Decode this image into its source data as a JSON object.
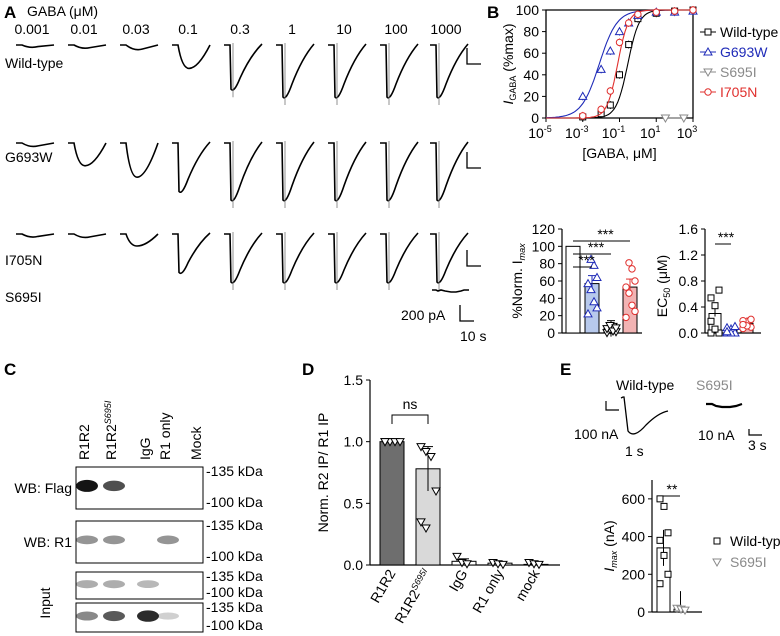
{
  "panel_labels": {
    "a": "A",
    "b": "B",
    "c": "C",
    "d": "D",
    "e": "E"
  },
  "colors": {
    "wt": "#000000",
    "g693w": "#1f2bb8",
    "s695i": "#8a8a8a",
    "i705n": "#e0302e",
    "bar_wt_fill": "#ffffff",
    "bar_g_fill": "#b7c9ec",
    "bar_s_fill": "#d6d6d6",
    "bar_i_fill": "#f2b3b3"
  },
  "panel_a": {
    "gaba_label": "GABA (μM)",
    "concentrations": [
      "0.001",
      "0.01",
      "0.03",
      "0.1",
      "0.3",
      "1",
      "10",
      "100",
      "1000"
    ],
    "rows": [
      {
        "name": "Wild-type",
        "amps": [
          0.03,
          0.05,
          0.08,
          0.45,
          0.85,
          1.0,
          1.0,
          1.0,
          1.0
        ]
      },
      {
        "name": "G693W",
        "amps": [
          0.05,
          0.4,
          0.6,
          0.85,
          1.0,
          1.0,
          1.0,
          1.0,
          1.0
        ]
      },
      {
        "name": "I705N",
        "amps": [
          0.05,
          0.06,
          0.25,
          0.8,
          1.0,
          1.0,
          1.0,
          1.0,
          1.0
        ]
      },
      {
        "name": "S695I"
      }
    ],
    "scale_current": "200 pA",
    "scale_time": "10 s"
  },
  "panel_b_curve": {
    "ylabel_main": "I",
    "ylabel_sub": "GABA",
    "ylabel_rest": " (%max)",
    "xlabel": "[GABA, μM]",
    "yticks": [
      "0",
      "20",
      "40",
      "60",
      "80",
      "100"
    ],
    "xticks": [
      {
        "base": "10",
        "exp": "-5"
      },
      {
        "base": "10",
        "exp": "-3"
      },
      {
        "base": "10",
        "exp": "-1"
      },
      {
        "base": "10",
        "exp": "1"
      },
      {
        "base": "10",
        "exp": "3"
      }
    ],
    "legend": [
      "Wild-type",
      "G693W",
      "S695I",
      "I705N"
    ],
    "chart_data": {
      "type": "line",
      "x_log10": [
        -3,
        -2,
        -1.5,
        -1,
        -0.5,
        0,
        1,
        2,
        3
      ],
      "series": [
        {
          "name": "Wild-type",
          "ec50_log": -0.55,
          "hill": 1.4,
          "y": [
            1,
            4,
            12,
            40,
            68,
            92,
            97,
            99,
            100
          ]
        },
        {
          "name": "G693W",
          "ec50_log": -2.1,
          "hill": 0.9,
          "y": [
            20,
            45,
            62,
            80,
            88,
            95,
            98,
            98,
            99
          ]
        },
        {
          "name": "I705N",
          "ec50_log": -1.1,
          "hill": 1.5,
          "y": [
            2,
            8,
            25,
            70,
            88,
            96,
            98,
            99,
            100
          ]
        },
        {
          "name": "S695I",
          "y_flat": [
            [
              1.5,
              0
            ],
            [
              2.5,
              0
            ]
          ]
        }
      ],
      "xlim_log": [
        -5,
        3
      ],
      "ylim": [
        0,
        100
      ]
    }
  },
  "panel_b_norm": {
    "ylabel_main": "%Norm. I",
    "ylabel_sub": "max",
    "yticks": [
      "0",
      "20",
      "40",
      "60",
      "80",
      "100",
      "120"
    ],
    "sig": [
      "***",
      "***",
      "***"
    ],
    "chart_data": {
      "type": "bar",
      "categories": [
        "Wild-type",
        "G693W",
        "S695I",
        "I705N"
      ],
      "values": [
        100,
        57,
        5,
        53
      ],
      "ylim": [
        0,
        120
      ]
    }
  },
  "panel_b_ec50": {
    "ylabel": "EC",
    "ylabel_sub": "50",
    "ylabel_rest": " (μM)",
    "yticks": [
      "0.0",
      "0.4",
      "0.8",
      "1.2",
      "1.6"
    ],
    "sig": "***",
    "chart_data": {
      "type": "bar",
      "categories": [
        "Wild-type",
        "G693W",
        "I705N"
      ],
      "values": [
        0.3,
        0.04,
        0.15
      ],
      "ylim": [
        0,
        1.6
      ]
    }
  },
  "panel_c": {
    "lanes": [
      "R1R2",
      "R1R2",
      "IgG",
      "R1 only",
      "Mock"
    ],
    "lane2_sup": "S695I",
    "rows": [
      {
        "label": "WB: Flag",
        "markers": [
          "-135 kDa",
          "-100 kDa"
        ]
      },
      {
        "label": "WB: R1",
        "markers": [
          "-135 kDa",
          "-100 kDa"
        ]
      },
      {
        "label": "",
        "markers": [
          "-135 kDa",
          "-100 kDa"
        ]
      },
      {
        "label": "",
        "markers": [
          "-135 kDa",
          "-100 kDa"
        ]
      }
    ],
    "input_label": "Input"
  },
  "panel_d": {
    "ylabel": "Norm. R2 IP/ R1 IP",
    "yticks": [
      "0.0",
      "0.5",
      "1.0",
      "1.5"
    ],
    "sig": "ns",
    "x_labels": [
      "R1R2",
      "R1R2",
      "IgG",
      "R1 only",
      "mock"
    ],
    "x2_sup": "S695I",
    "chart_data": {
      "type": "bar",
      "categories": [
        "R1R2",
        "R1R2 S695I",
        "IgG",
        "R1 only",
        "mock"
      ],
      "values": [
        1.0,
        0.78,
        0.03,
        0.015,
        0.005
      ],
      "errors": [
        0.0,
        0.18,
        0.02,
        0.01,
        0.005
      ],
      "ylim": [
        0,
        1.5
      ]
    }
  },
  "panel_e": {
    "wt_label": "Wild-type",
    "s_label": "S695I",
    "scale_wt_i": "100 nA",
    "scale_wt_t": "1 s",
    "scale_s_i": "10 nA",
    "scale_s_t": "3 s",
    "ylabel_main": "I",
    "ylabel_sub": "max",
    "ylabel_rest": " (nA)",
    "yticks": [
      "0",
      "200",
      "400",
      "600"
    ],
    "sig": "**",
    "legend": [
      "Wild-type",
      "S695I"
    ],
    "chart_data": {
      "type": "bar",
      "categories": [
        "Wild-type",
        "S695I"
      ],
      "values": [
        340,
        15
      ],
      "ylim": [
        0,
        700
      ]
    }
  }
}
